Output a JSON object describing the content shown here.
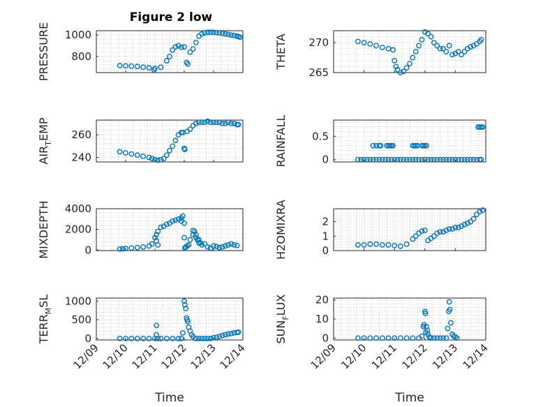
{
  "figure_title": "Figure 2 low",
  "chart_data": [
    {
      "type": "scatter",
      "id": "pressure",
      "ylabel": "PRESSURE",
      "title": "Figure 2 low",
      "ylim": [
        650,
        1040
      ],
      "yticks": [
        800,
        1000
      ],
      "xlim": [
        0,
        5
      ],
      "show_xticks": false,
      "series": [
        {
          "x": [
            0.8,
            1.0,
            1.2,
            1.4,
            1.6,
            1.8,
            1.97,
            2.0,
            2.2,
            2.4,
            2.5,
            2.6,
            2.7,
            2.8,
            2.9,
            3.0,
            3.08,
            3.12,
            3.2,
            3.3,
            3.4,
            3.5,
            3.6,
            3.7,
            3.8,
            3.9,
            4.0,
            4.1,
            4.2,
            4.3,
            4.4,
            4.5,
            4.6,
            4.7,
            4.8,
            4.85,
            4.9
          ],
          "y": [
            715,
            713,
            710,
            708,
            700,
            695,
            675,
            690,
            700,
            760,
            800,
            860,
            890,
            900,
            885,
            890,
            745,
            730,
            840,
            870,
            930,
            990,
            1010,
            1020,
            1025,
            1025,
            1025,
            1022,
            1020,
            1015,
            1010,
            1005,
            1000,
            995,
            990,
            985,
            980
          ]
        }
      ]
    },
    {
      "type": "scatter",
      "id": "theta",
      "ylabel": "THETA",
      "ylim": [
        265,
        272
      ],
      "yticks": [
        265,
        270
      ],
      "xlim": [
        0,
        5
      ],
      "show_xticks": false,
      "series": [
        {
          "x": [
            0.8,
            1.0,
            1.2,
            1.4,
            1.6,
            1.8,
            1.95,
            2.0,
            2.05,
            2.1,
            2.2,
            2.3,
            2.4,
            2.5,
            2.6,
            2.7,
            2.8,
            2.9,
            3.0,
            3.1,
            3.2,
            3.3,
            3.4,
            3.5,
            3.6,
            3.7,
            3.8,
            3.9,
            4.0,
            4.1,
            4.2,
            4.3,
            4.4,
            4.5,
            4.6,
            4.7,
            4.8,
            4.85
          ],
          "y": [
            270.2,
            270.0,
            269.8,
            269.5,
            269.2,
            269.0,
            268.8,
            267.0,
            266.0,
            265.5,
            265.0,
            265.2,
            265.8,
            266.5,
            267.5,
            268.5,
            269.5,
            270.5,
            271.8,
            271.5,
            271.0,
            270.0,
            269.5,
            269.0,
            269.0,
            268.5,
            269.5,
            268.0,
            268.2,
            268.5,
            268.0,
            268.5,
            269.0,
            269.3,
            269.5,
            269.8,
            270.2,
            270.5
          ]
        }
      ]
    },
    {
      "type": "scatter",
      "id": "air_temp",
      "ylabel": "AIR_TEMP",
      "ylim": [
        236,
        273
      ],
      "yticks": [
        240,
        260
      ],
      "xlim": [
        0,
        5
      ],
      "show_xticks": false,
      "series": [
        {
          "x": [
            0.8,
            1.0,
            1.2,
            1.4,
            1.6,
            1.8,
            1.9,
            2.0,
            2.1,
            2.2,
            2.3,
            2.4,
            2.5,
            2.6,
            2.7,
            2.8,
            2.9,
            2.95,
            3.0,
            3.02,
            3.1,
            3.2,
            3.3,
            3.4,
            3.5,
            3.6,
            3.7,
            3.8,
            3.9,
            4.0,
            4.1,
            4.2,
            4.3,
            4.4,
            4.5,
            4.6,
            4.7,
            4.8,
            4.85
          ],
          "y": [
            245,
            244,
            243,
            242,
            241,
            240,
            239,
            238,
            237.5,
            238,
            239,
            242,
            246,
            250,
            255,
            260,
            262,
            262,
            248,
            247,
            263,
            265,
            268,
            270,
            271,
            271,
            271,
            272,
            271,
            271,
            271,
            271,
            270,
            270,
            271,
            270,
            270,
            269,
            269
          ]
        }
      ]
    },
    {
      "type": "scatter",
      "id": "rainfall",
      "ylabel": "RAINFALL",
      "ylim": [
        -0.05,
        0.85
      ],
      "yticks": [
        0,
        0.5
      ],
      "xlim": [
        0,
        5
      ],
      "show_xticks": false,
      "series": [
        {
          "x": [
            0.8,
            0.9,
            1.0,
            1.1,
            1.2,
            1.3,
            1.4,
            1.5,
            1.6,
            1.7,
            1.8,
            1.9,
            2.0,
            2.1,
            2.2,
            2.3,
            2.4,
            2.5,
            2.6,
            2.7,
            2.8,
            2.9,
            3.0,
            3.1,
            3.2,
            3.3,
            3.4,
            3.5,
            3.6,
            3.7,
            3.8,
            3.9,
            4.0,
            4.1,
            4.2,
            4.3,
            4.4,
            4.5,
            4.6,
            4.7,
            4.8,
            4.85,
            1.3,
            1.4,
            1.5,
            1.55,
            1.75,
            1.8,
            1.85,
            1.9,
            1.95,
            2.6,
            2.65,
            2.7,
            2.75,
            2.9,
            2.95,
            3.0,
            3.05,
            4.75,
            4.8,
            4.85,
            4.9
          ],
          "y": [
            0,
            0,
            0,
            0,
            0,
            0,
            0,
            0,
            0,
            0,
            0,
            0,
            0,
            0,
            0,
            0,
            0,
            0,
            0,
            0,
            0,
            0,
            0,
            0,
            0,
            0,
            0,
            0,
            0,
            0,
            0,
            0,
            0,
            0,
            0,
            0,
            0,
            0,
            0,
            0,
            0,
            0,
            0.3,
            0.3,
            0.3,
            0.3,
            0.3,
            0.3,
            0.3,
            0.3,
            0.3,
            0.3,
            0.3,
            0.3,
            0.3,
            0.3,
            0.3,
            0.3,
            0.3,
            0.7,
            0.7,
            0.7,
            0.7
          ]
        }
      ]
    },
    {
      "type": "scatter",
      "id": "mixdepth",
      "ylabel": "MIXDEPTH",
      "ylim": [
        -50,
        4000
      ],
      "yticks": [
        0,
        2000,
        4000
      ],
      "xlim": [
        0,
        5
      ],
      "show_xticks": false,
      "series": [
        {
          "x": [
            0.8,
            0.9,
            1.0,
            1.2,
            1.4,
            1.6,
            1.8,
            1.9,
            2.0,
            2.05,
            2.1,
            2.2,
            2.3,
            2.4,
            2.5,
            2.6,
            2.7,
            2.8,
            2.9,
            3.0,
            3.02,
            3.05,
            3.1,
            3.15,
            3.2,
            3.3,
            3.4,
            3.45,
            3.5,
            3.6,
            3.7,
            3.8,
            3.9,
            4.0,
            4.1,
            4.2,
            4.3,
            4.4,
            4.5,
            4.6,
            4.7,
            4.8,
            2.05,
            2.1,
            2.9,
            2.95,
            3.0,
            3.3,
            3.35,
            3.4,
            3.5,
            3.55
          ],
          "y": [
            100,
            120,
            150,
            200,
            250,
            300,
            400,
            600,
            1200,
            1500,
            1800,
            2200,
            2300,
            2500,
            2600,
            2800,
            2900,
            3000,
            3100,
            2600,
            200,
            300,
            400,
            500,
            1000,
            1500,
            1200,
            1000,
            700,
            500,
            600,
            300,
            200,
            400,
            350,
            250,
            300,
            400,
            500,
            600,
            500,
            450,
            900,
            500,
            2800,
            3300,
            1200,
            1900,
            1800,
            1500,
            1000,
            700
          ]
        }
      ]
    },
    {
      "type": "scatter",
      "id": "h2omixra",
      "ylabel": "H2OMIXRA",
      "ylim": [
        0,
        2.9
      ],
      "yticks": [
        0,
        1,
        2
      ],
      "xlim": [
        0,
        5
      ],
      "show_xticks": false,
      "series": [
        {
          "x": [
            0.8,
            1.0,
            1.2,
            1.4,
            1.6,
            1.8,
            2.0,
            2.2,
            2.4,
            2.6,
            2.7,
            2.8,
            2.9,
            3.0,
            3.1,
            3.2,
            3.3,
            3.4,
            3.5,
            3.6,
            3.7,
            3.8,
            3.9,
            4.0,
            4.1,
            4.2,
            4.3,
            4.4,
            4.5,
            4.6,
            4.7,
            4.8,
            4.9
          ],
          "y": [
            0.4,
            0.4,
            0.45,
            0.45,
            0.4,
            0.4,
            0.35,
            0.3,
            0.45,
            0.8,
            1.0,
            1.2,
            1.35,
            1.4,
            0.7,
            0.85,
            1.0,
            1.2,
            1.3,
            1.3,
            1.4,
            1.5,
            1.5,
            1.6,
            1.6,
            1.7,
            1.8,
            1.9,
            2.0,
            2.2,
            2.5,
            2.7,
            2.8
          ]
        }
      ]
    },
    {
      "type": "scatter",
      "id": "terr_msl",
      "ylabel": "TERR_MSL",
      "ylim": [
        -40,
        1080
      ],
      "yticks": [
        0,
        500,
        1000
      ],
      "xlim": [
        0,
        5
      ],
      "show_xticks": true,
      "xtick_labels": [
        "12/09",
        "12/10",
        "12/11",
        "12/12",
        "12/13",
        "12/14"
      ],
      "xlabel": "Time",
      "series": [
        {
          "x": [
            0.8,
            1.0,
            1.2,
            1.4,
            1.6,
            1.8,
            2.0,
            2.05,
            2.1,
            2.2,
            2.4,
            2.6,
            2.8,
            2.9,
            2.95,
            3.0,
            3.02,
            3.05,
            3.08,
            3.1,
            3.12,
            3.15,
            3.2,
            3.25,
            3.3,
            3.4,
            3.5,
            3.6,
            3.7,
            3.8,
            3.9,
            4.0,
            4.1,
            4.2,
            4.3,
            4.4,
            4.5,
            4.6,
            4.7,
            4.8,
            4.85,
            2.05
          ],
          "y": [
            0,
            0,
            0,
            0,
            0,
            0,
            0,
            350,
            0,
            0,
            0,
            0,
            0,
            0,
            150,
            1000,
            900,
            800,
            550,
            500,
            450,
            300,
            200,
            100,
            50,
            0,
            0,
            0,
            0,
            0,
            0,
            20,
            30,
            50,
            80,
            100,
            120,
            130,
            150,
            160,
            170,
            100
          ]
        }
      ]
    },
    {
      "type": "scatter",
      "id": "sun_flux",
      "ylabel": "SUN_FLUX",
      "ylim": [
        -1,
        21
      ],
      "yticks": [
        0,
        10,
        20
      ],
      "xlim": [
        0,
        5
      ],
      "show_xticks": true,
      "xtick_labels": [
        "12/09",
        "12/10",
        "12/11",
        "12/12",
        "12/13",
        "12/14"
      ],
      "xlabel": "Time",
      "series": [
        {
          "x": [
            0.8,
            1.0,
            1.2,
            1.4,
            1.6,
            1.8,
            2.0,
            2.2,
            2.4,
            2.6,
            2.8,
            2.95,
            3.0,
            3.02,
            3.05,
            3.08,
            3.1,
            3.15,
            3.2,
            3.3,
            3.4,
            3.5,
            3.6,
            3.7,
            3.75,
            3.78,
            3.8,
            3.82,
            3.85,
            3.9,
            3.95,
            4.0,
            4.05,
            2.9,
            2.97,
            3.03
          ],
          "y": [
            0,
            0,
            0,
            0,
            0,
            0,
            0,
            0,
            0,
            0,
            0,
            6,
            14,
            13,
            6,
            4,
            2,
            0.5,
            0,
            0,
            0,
            0,
            0,
            0,
            5,
            14,
            19,
            15,
            8,
            2,
            1,
            0.5,
            0,
            1,
            7,
            3
          ]
        }
      ]
    }
  ]
}
